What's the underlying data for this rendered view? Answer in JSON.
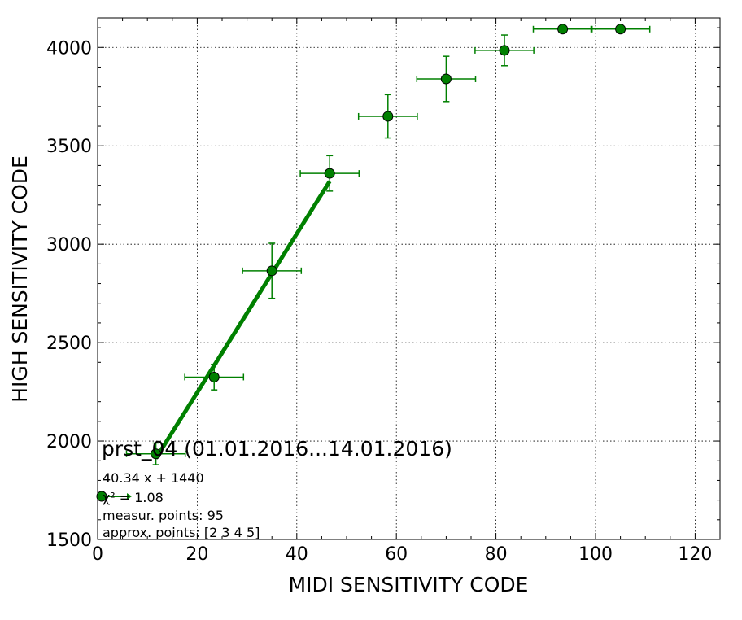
{
  "chart_data": {
    "type": "scatter",
    "title": "prst_04 (01.01.2016...14.01.2016)",
    "xlabel": "MIDI SENSITIVITY CODE",
    "ylabel": "HIGH SENSITIVITY CODE",
    "xlim": [
      0,
      125
    ],
    "ylim": [
      1500,
      4150
    ],
    "xticks": [
      "0",
      "20",
      "40",
      "60",
      "80",
      "100",
      "120"
    ],
    "yticks": [
      "1500",
      "2000",
      "2500",
      "3000",
      "3500",
      "4000"
    ],
    "grid": true,
    "colors": {
      "series": "#008000",
      "marker": "#008000",
      "edge": "#000000"
    },
    "series": [
      {
        "x": [
          11.7,
          23.4,
          35.0,
          46.6,
          58.3,
          70.0,
          81.7,
          93.4,
          105.0
        ],
        "y": [
          1935,
          2325,
          2865,
          3360,
          3650,
          3840,
          3985,
          4093,
          4093
        ],
        "xerr": [
          5.9,
          5.9,
          5.9,
          5.9,
          5.9,
          5.9,
          5.9,
          5.9,
          5.9
        ],
        "yerr": [
          55,
          65,
          140,
          90,
          110,
          115,
          78,
          0,
          0
        ]
      }
    ],
    "fit": {
      "slope": 40.34,
      "intercept": 1440,
      "x_range": [
        11.7,
        46.6
      ]
    },
    "annotations": {
      "equation": "40.34 x + 1440",
      "chi2_label": "χ² = 1.08",
      "measur_points": "measur. points: 95",
      "approx_points": "approx. points: [2 3 4 5]"
    }
  }
}
